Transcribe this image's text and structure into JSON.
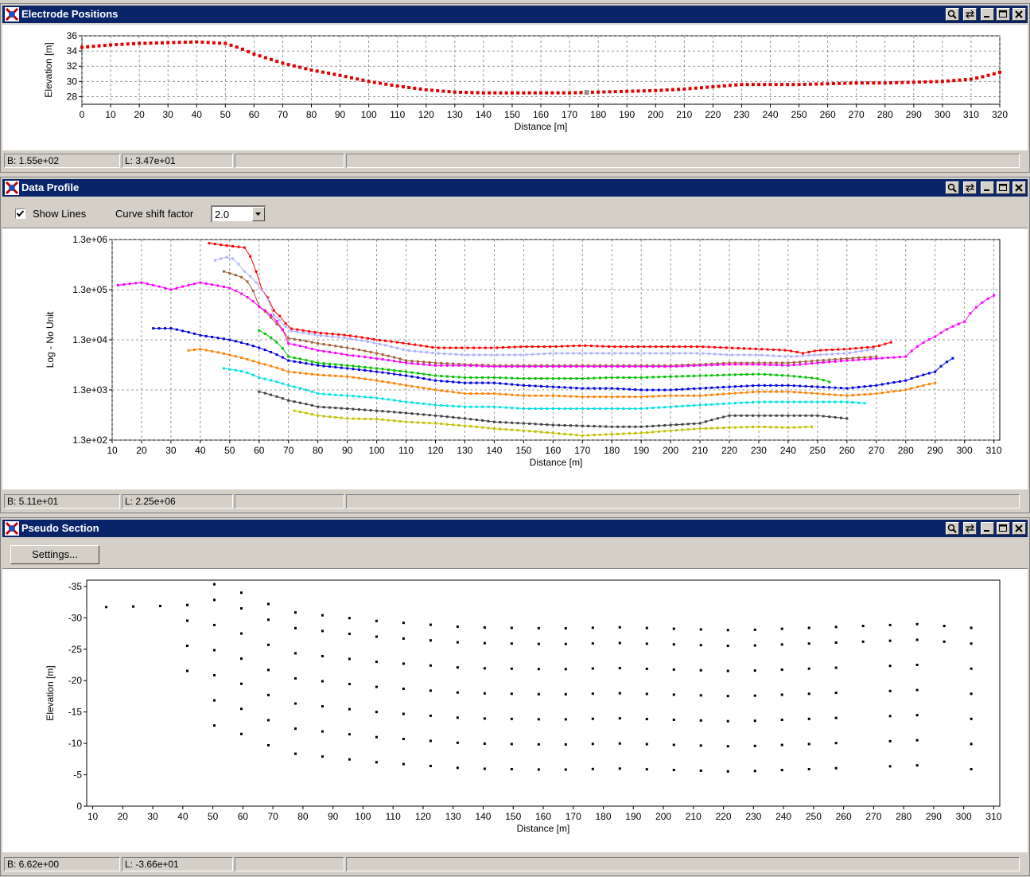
{
  "panels": {
    "electrode": {
      "title": "Electrode Positions",
      "status": [
        "B: 1.55e+02",
        "L: 3.47e+01",
        "",
        ""
      ]
    },
    "profile": {
      "title": "Data Profile",
      "show_lines_label": "Show Lines",
      "show_lines_checked": true,
      "curve_shift_label": "Curve shift factor",
      "curve_shift_value": "2.0",
      "status": [
        "B: 5.11e+01",
        "L: 2.25e+06",
        "",
        ""
      ]
    },
    "pseudo": {
      "title": "Pseudo Section",
      "settings_label": "Settings...",
      "status": [
        "B: 6.62e+00",
        "L: -3.66e+01",
        "",
        ""
      ]
    }
  },
  "icons": [
    "app-logo-icon",
    "zoom-icon",
    "swap-icon",
    "minimize-icon",
    "maximize-icon",
    "close-icon",
    "dropdown-arrow-icon",
    "checkmark-icon"
  ],
  "colors": {
    "titlebar": "#0a246a",
    "electrode_marker": "#e00000",
    "selected_marker": "#909090"
  },
  "chart_data": [
    {
      "type": "scatter",
      "name": "electrode-positions",
      "xlabel": "Distance [m]",
      "ylabel": "Elevation [m]",
      "xlim": [
        0,
        320
      ],
      "ylim": [
        27,
        36
      ],
      "xticks": [
        0,
        10,
        20,
        30,
        40,
        50,
        60,
        70,
        80,
        90,
        100,
        110,
        120,
        130,
        140,
        150,
        160,
        170,
        180,
        190,
        200,
        210,
        220,
        230,
        240,
        250,
        260,
        270,
        280,
        290,
        300,
        310,
        320
      ],
      "yticks": [
        28,
        30,
        32,
        34,
        36
      ],
      "grid": true,
      "profile_x": [
        0,
        10,
        20,
        30,
        40,
        50,
        55,
        60,
        65,
        70,
        80,
        90,
        100,
        110,
        120,
        130,
        140,
        150,
        160,
        170,
        180,
        190,
        200,
        210,
        220,
        230,
        240,
        250,
        260,
        270,
        280,
        290,
        300,
        310,
        315,
        320
      ],
      "profile_y": [
        34.5,
        34.8,
        35.0,
        35.1,
        35.2,
        35.0,
        34.4,
        33.6,
        33.0,
        32.4,
        31.5,
        30.8,
        30.0,
        29.4,
        28.9,
        28.6,
        28.5,
        28.5,
        28.5,
        28.5,
        28.6,
        28.7,
        28.8,
        29.0,
        29.3,
        29.6,
        29.6,
        29.6,
        29.7,
        29.8,
        29.8,
        29.9,
        30.0,
        30.3,
        30.7,
        31.2
      ],
      "spacing": 2,
      "highlighted_x": 176
    },
    {
      "type": "line",
      "name": "data-profile",
      "xlabel": "Distance [m]",
      "ylabel": "Log - No Unit",
      "xlim": [
        10,
        312
      ],
      "ylog": true,
      "ylim": [
        130,
        1300000
      ],
      "xticks": [
        10,
        20,
        30,
        40,
        50,
        60,
        70,
        80,
        90,
        100,
        110,
        120,
        130,
        140,
        150,
        160,
        170,
        180,
        190,
        200,
        210,
        220,
        230,
        240,
        250,
        260,
        270,
        280,
        290,
        300,
        310
      ],
      "yticks": [
        "1.3e+06",
        "1.3e+05",
        "1.3e+04",
        "1.3e+03",
        "1.3e+02"
      ],
      "grid": true,
      "series": [
        {
          "color": "#ff0000",
          "x": [
            43,
            48,
            55,
            60,
            65,
            70,
            80,
            90,
            100,
            110,
            120,
            130,
            140,
            150,
            160,
            170,
            180,
            190,
            200,
            210,
            220,
            230,
            240,
            245,
            250,
            260,
            270,
            276
          ],
          "y": [
            1100000.0,
            1000000.0,
            900000.0,
            150000.0,
            50000.0,
            22000.0,
            18000.0,
            16000.0,
            13000.0,
            11000.0,
            9000.0,
            9000.0,
            9000.0,
            9500.0,
            9500.0,
            10000.0,
            9500.0,
            9500.0,
            9500.0,
            9500.0,
            9000.0,
            8500.0,
            8000.0,
            7000.0,
            8000.0,
            8500.0,
            9500.0,
            12000.0
          ]
        },
        {
          "color": "#b0b0ff",
          "x": [
            45,
            50,
            55,
            60,
            65,
            70,
            80,
            90,
            100,
            110,
            120,
            130,
            140,
            150,
            160,
            170,
            180,
            190,
            200,
            210,
            220,
            230,
            240,
            250,
            260,
            270
          ],
          "y": [
            500000.0,
            600000.0,
            300000.0,
            150000.0,
            40000.0,
            20000.0,
            16000.0,
            14000.0,
            11000.0,
            8000.0,
            7000.0,
            6500.0,
            6500.0,
            6500.0,
            7000.0,
            7000.0,
            7000.0,
            7000.0,
            7000.0,
            7000.0,
            6500.0,
            6500.0,
            6000.0,
            6500.0,
            7000.0,
            8500.0
          ]
        },
        {
          "color": "#a0603a",
          "x": [
            48,
            55,
            60,
            65,
            70,
            80,
            90,
            100,
            110,
            120,
            130,
            140,
            150,
            160,
            170,
            180,
            190,
            200,
            210,
            220,
            230,
            240,
            250,
            260,
            270
          ],
          "y": [
            300000.0,
            220000.0,
            60000.0,
            30000.0,
            14000.0,
            11000.0,
            9000.0,
            7000.0,
            5000.0,
            4500.0,
            4200.0,
            4000.0,
            4000.0,
            4000.0,
            4000.0,
            4000.0,
            4000.0,
            4000.0,
            4200.0,
            4500.0,
            4500.0,
            4500.0,
            5000.0,
            5500.0,
            6000.0
          ]
        },
        {
          "color": "#ff00ff",
          "x": [
            12,
            20,
            30,
            40,
            50,
            60,
            70,
            80,
            90,
            100,
            110,
            120,
            130,
            140,
            150,
            160,
            170,
            180,
            190,
            200,
            210,
            220,
            230,
            240,
            250,
            260,
            270,
            280,
            290,
            300,
            310
          ],
          "y": [
            160000.0,
            180000.0,
            130000.0,
            180000.0,
            140000.0,
            60000.0,
            11000.0,
            8000.0,
            6500.0,
            5500.0,
            4500.0,
            4000.0,
            4000.0,
            3800.0,
            3800.0,
            3800.0,
            3800.0,
            3800.0,
            3800.0,
            3800.0,
            4000.0,
            4200.0,
            4200.0,
            4000.0,
            4500.0,
            5000.0,
            5500.0,
            6000.0,
            15000.0,
            30000.0,
            100000.0
          ]
        },
        {
          "color": "#00c000",
          "x": [
            60,
            65,
            70,
            80,
            90,
            100,
            110,
            120,
            130,
            140,
            150,
            160,
            170,
            180,
            190,
            200,
            210,
            220,
            230,
            240,
            250,
            255
          ],
          "y": [
            20000.0,
            13000.0,
            6000.0,
            4500.0,
            4000.0,
            3500.0,
            3000.0,
            2500.0,
            2300.0,
            2300.0,
            2200.0,
            2200.0,
            2200.0,
            2300.0,
            2300.0,
            2400.0,
            2500.0,
            2600.0,
            2700.0,
            2500.0,
            2200.0,
            1800.0
          ]
        },
        {
          "color": "#0000e0",
          "x": [
            24,
            30,
            40,
            50,
            60,
            70,
            80,
            90,
            100,
            110,
            120,
            130,
            140,
            150,
            160,
            170,
            180,
            190,
            200,
            210,
            220,
            230,
            240,
            250,
            260,
            270,
            280,
            290,
            297
          ],
          "y": [
            22000.0,
            22000.0,
            16000.0,
            13000.0,
            9000.0,
            5000.0,
            4000.0,
            3500.0,
            3000.0,
            2500.0,
            2000.0,
            1800.0,
            1800.0,
            1600.0,
            1500.0,
            1400.0,
            1400.0,
            1300.0,
            1300.0,
            1400.0,
            1500.0,
            1600.0,
            1600.0,
            1500.0,
            1400.0,
            1600.0,
            2000.0,
            3000.0,
            6000.0
          ]
        },
        {
          "color": "#ff8000",
          "x": [
            36,
            40,
            50,
            60,
            70,
            80,
            90,
            100,
            110,
            120,
            130,
            140,
            150,
            160,
            170,
            180,
            190,
            200,
            210,
            220,
            230,
            240,
            250,
            260,
            270,
            280,
            290
          ],
          "y": [
            8000.0,
            8500.0,
            6500.0,
            4500.0,
            3000.0,
            2600.0,
            2400.0,
            2000.0,
            1600.0,
            1300.0,
            1100.0,
            1100.0,
            1000.0,
            1000.0,
            950.0,
            950.0,
            950.0,
            1000.0,
            1000.0,
            1100.0,
            1200.0,
            1200.0,
            1100.0,
            1000.0,
            1100.0,
            1300.0,
            1800.0
          ]
        },
        {
          "color": "#00e0e0",
          "x": [
            48,
            55,
            60,
            70,
            80,
            90,
            100,
            110,
            120,
            130,
            140,
            150,
            160,
            170,
            180,
            190,
            200,
            210,
            220,
            230,
            240,
            250,
            260,
            267
          ],
          "y": [
            3500.0,
            3000.0,
            2300.0,
            1600.0,
            1100.0,
            1000.0,
            900.0,
            750.0,
            650.0,
            600.0,
            600.0,
            550.0,
            550.0,
            550.0,
            550.0,
            550.0,
            600.0,
            650.0,
            700.0,
            750.0,
            750.0,
            750.0,
            750.0,
            700.0
          ]
        },
        {
          "color": "#404040",
          "x": [
            60,
            70,
            80,
            90,
            100,
            110,
            120,
            130,
            140,
            150,
            160,
            170,
            180,
            190,
            200,
            210,
            220,
            230,
            240,
            250,
            260
          ],
          "y": [
            1200.0,
            800.0,
            600.0,
            550.0,
            500.0,
            450.0,
            400.0,
            350.0,
            300.0,
            280.0,
            260.0,
            250.0,
            240.0,
            240.0,
            260.0,
            280.0,
            400.0,
            400.0,
            400.0,
            400.0,
            350.0
          ]
        },
        {
          "color": "#c0c000",
          "x": [
            72,
            80,
            90,
            100,
            110,
            120,
            130,
            140,
            150,
            160,
            170,
            180,
            190,
            200,
            210,
            220,
            230,
            240,
            248
          ],
          "y": [
            500.0,
            400.0,
            350.0,
            340.0,
            300.0,
            280.0,
            250.0,
            220.0,
            200.0,
            180.0,
            160.0,
            170.0,
            180.0,
            200.0,
            220.0,
            230.0,
            240.0,
            230.0,
            240.0
          ]
        }
      ]
    },
    {
      "type": "heatmap",
      "name": "pseudo-section",
      "xlabel": "Distance [m]",
      "ylabel": "Elevation [m]",
      "xlim": [
        8,
        312
      ],
      "ylim": [
        0,
        -36
      ],
      "xticks": [
        10,
        20,
        30,
        40,
        50,
        60,
        70,
        80,
        90,
        100,
        110,
        120,
        130,
        140,
        150,
        160,
        170,
        180,
        190,
        200,
        210,
        220,
        230,
        240,
        250,
        260,
        270,
        280,
        290,
        300,
        310
      ],
      "yticks": [
        -35,
        -30,
        -25,
        -20,
        -15,
        -10,
        -5,
        0
      ],
      "grid": false,
      "colormap": [
        "#5a0000",
        "#e00000",
        "#ff3000",
        "#ffa000",
        "#ffff00",
        "#80ff00",
        "#00d000",
        "#008060",
        "#0000ff",
        "#6000a0"
      ]
    }
  ]
}
